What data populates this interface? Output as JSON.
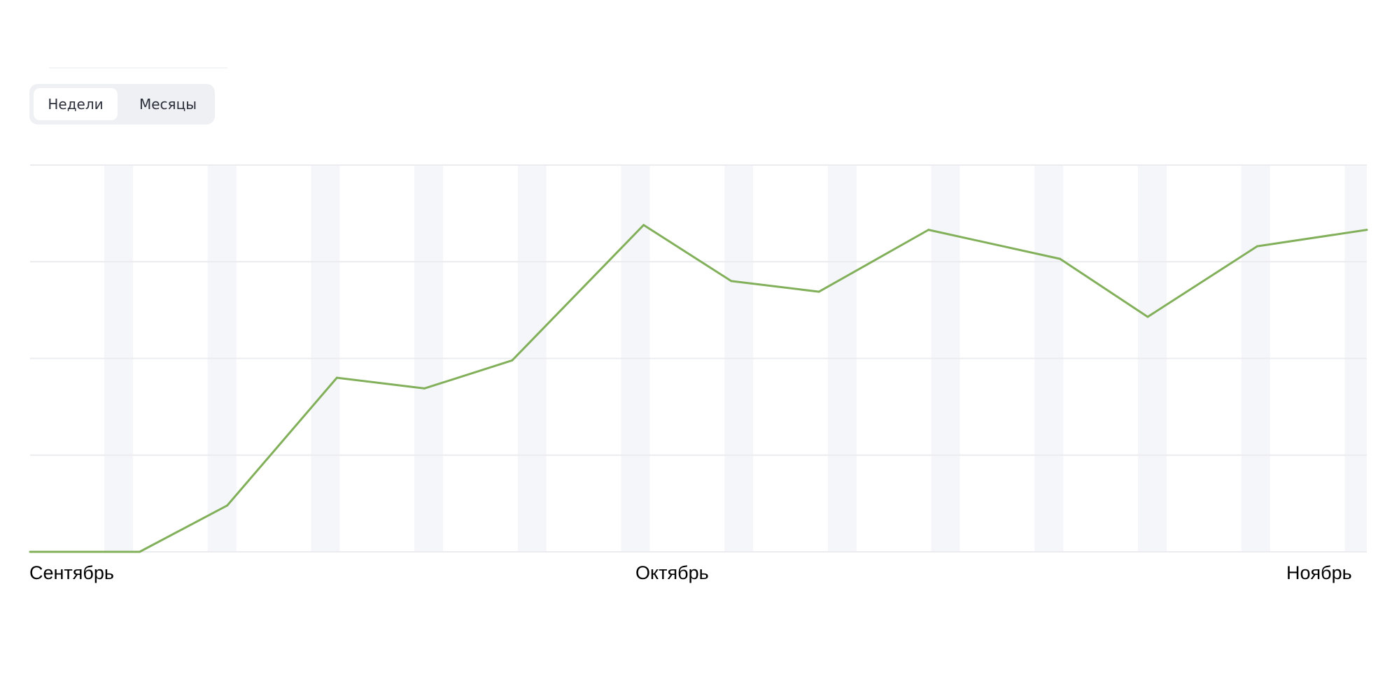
{
  "toggle": {
    "options": [
      "Недели",
      "Месяцы"
    ],
    "selected": "Недели"
  },
  "chart_data": {
    "type": "line",
    "title": "",
    "xlabel": "",
    "ylabel": "",
    "x_tick_labels": [
      "Сентябрь",
      "Октябрь",
      "Ноябрь"
    ],
    "x_range": [
      "Sep 1",
      "Nov 1"
    ],
    "grid": true,
    "gridlines_y": 5,
    "y_range": [
      0,
      4
    ],
    "series": [
      {
        "color": "#82b05a",
        "points": [
          {
            "x": "Sep 1",
            "y": 0
          },
          {
            "x": "Sep 6",
            "y": 0
          },
          {
            "x": "Sep 10",
            "y": 0.48
          },
          {
            "x": "Sep 15",
            "y": 1.8
          },
          {
            "x": "Sep 19",
            "y": 1.69
          },
          {
            "x": "Sep 23",
            "y": 1.98
          },
          {
            "x": "Sep 29",
            "y": 3.38
          },
          {
            "x": "Oct 3",
            "y": 2.8
          },
          {
            "x": "Oct 7",
            "y": 2.69
          },
          {
            "x": "Oct 12",
            "y": 3.33
          },
          {
            "x": "Oct 18",
            "y": 3.03
          },
          {
            "x": "Oct 22",
            "y": 2.43
          },
          {
            "x": "Oct 27",
            "y": 3.16
          },
          {
            "x": "Nov 1",
            "y": 3.33
          }
        ]
      }
    ],
    "colors": {
      "line": "#82b05a",
      "grid": "#ebecef",
      "band": "#f5f6fa"
    }
  }
}
